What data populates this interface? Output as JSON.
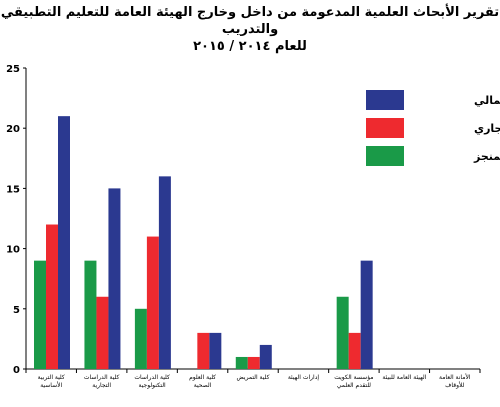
{
  "chart_data": {
    "type": "bar",
    "title_line1": "تقرير الأبحاث العلمية المدعومة من داخل وخارج الهيئة العامة للتعليم التطبيقي والتدريب",
    "title_line2": "للعام ٢٠١٤ / ٢٠١٥",
    "categories": [
      [
        "كلية التربية",
        "الأساسية"
      ],
      [
        "كلية الدراسات",
        "التجارية"
      ],
      [
        "كلية الدراسات",
        "التكنولوجية"
      ],
      [
        "كلية العلوم",
        "الصحية"
      ],
      [
        "كلية التمريض"
      ],
      [
        "إدارات الهيئة"
      ],
      [
        "مؤسسة الكويت",
        "للتقدم العلمي"
      ],
      [
        "الهيئة العامة للبيئة"
      ],
      [
        "الأمانة العامة",
        "للأوقاف"
      ]
    ],
    "series": [
      {
        "name": "المنجز",
        "color": "#1a9a48",
        "values": [
          9,
          9,
          5,
          0,
          1,
          0,
          6,
          0,
          0
        ]
      },
      {
        "name": "الجاري",
        "color": "#ee2a2f",
        "values": [
          12,
          6,
          11,
          3,
          1,
          0,
          3,
          0,
          0
        ]
      },
      {
        "name": "الإجمالي",
        "color": "#2b3990",
        "values": [
          21,
          15,
          16,
          3,
          2,
          0,
          9,
          0,
          0
        ]
      }
    ],
    "legend_order": [
      "الإجمالي",
      "الجاري",
      "المنجز"
    ],
    "yticks": [
      0,
      5,
      10,
      15,
      20,
      25
    ],
    "ylim": [
      0,
      25
    ],
    "legend_position": "top-right",
    "grid": false
  }
}
